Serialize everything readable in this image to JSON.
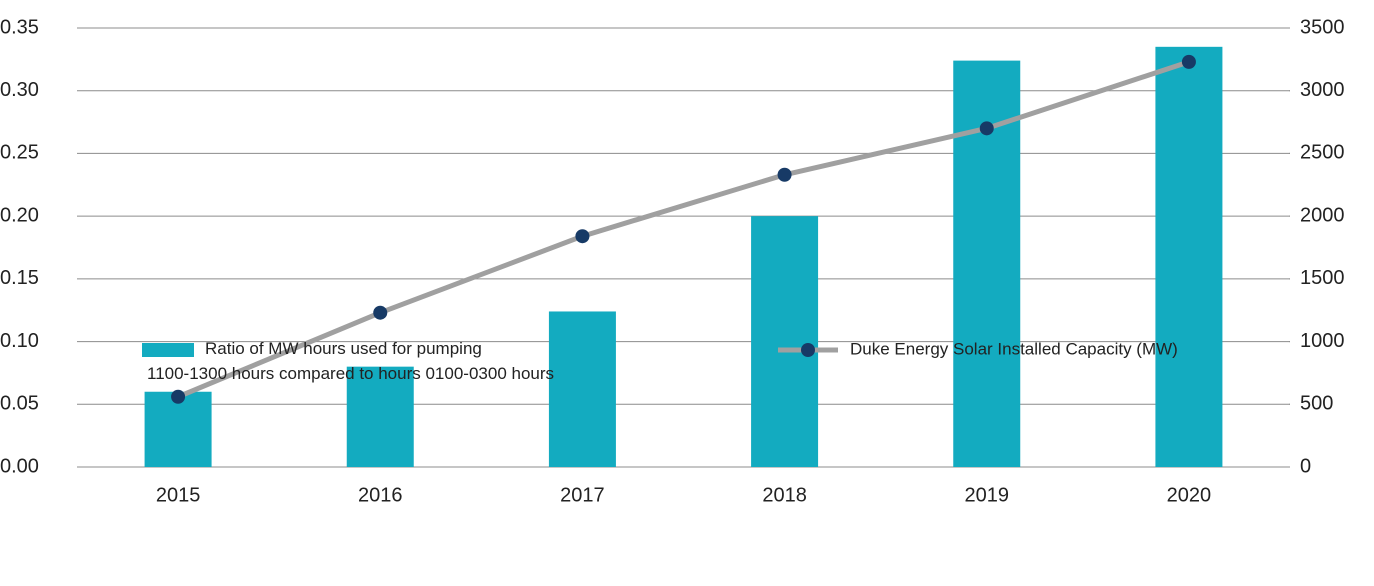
{
  "chart_data": {
    "type": "bar_line",
    "categories": [
      "2015",
      "2016",
      "2017",
      "2018",
      "2019",
      "2020"
    ],
    "series": [
      {
        "name": "Ratio of MW hours used for pumping\n1100-1300 hours compared to hours 0100-0300 hours",
        "type": "bar",
        "color": "#13abc0",
        "axis": "y",
        "values": [
          0.06,
          0.08,
          0.124,
          0.2,
          0.324,
          0.335
        ]
      },
      {
        "name": "Duke Energy Solar Installed Capacity (MW)",
        "type": "line",
        "color": "#a0a0a0",
        "marker_color": "#173a66",
        "axis": "y2",
        "values": [
          560,
          1230,
          1840,
          2330,
          2700,
          3230
        ]
      }
    ],
    "ylim": [
      0,
      0.35
    ],
    "yticks": [
      {
        "value": 0,
        "label": "0.00"
      },
      {
        "value": 0.05,
        "label": "0.05"
      },
      {
        "value": 0.1,
        "label": "0.10"
      },
      {
        "value": 0.15,
        "label": "0.15"
      },
      {
        "value": 0.2,
        "label": "0.20"
      },
      {
        "value": 0.25,
        "label": "0.25"
      },
      {
        "value": 0.3,
        "label": "0.30"
      },
      {
        "value": 0.35,
        "label": "0.35"
      }
    ],
    "y2lim": [
      0,
      3500
    ],
    "y2ticks": [
      0,
      500,
      1000,
      1500,
      2000,
      2500,
      3000,
      3500
    ],
    "grid": true
  }
}
